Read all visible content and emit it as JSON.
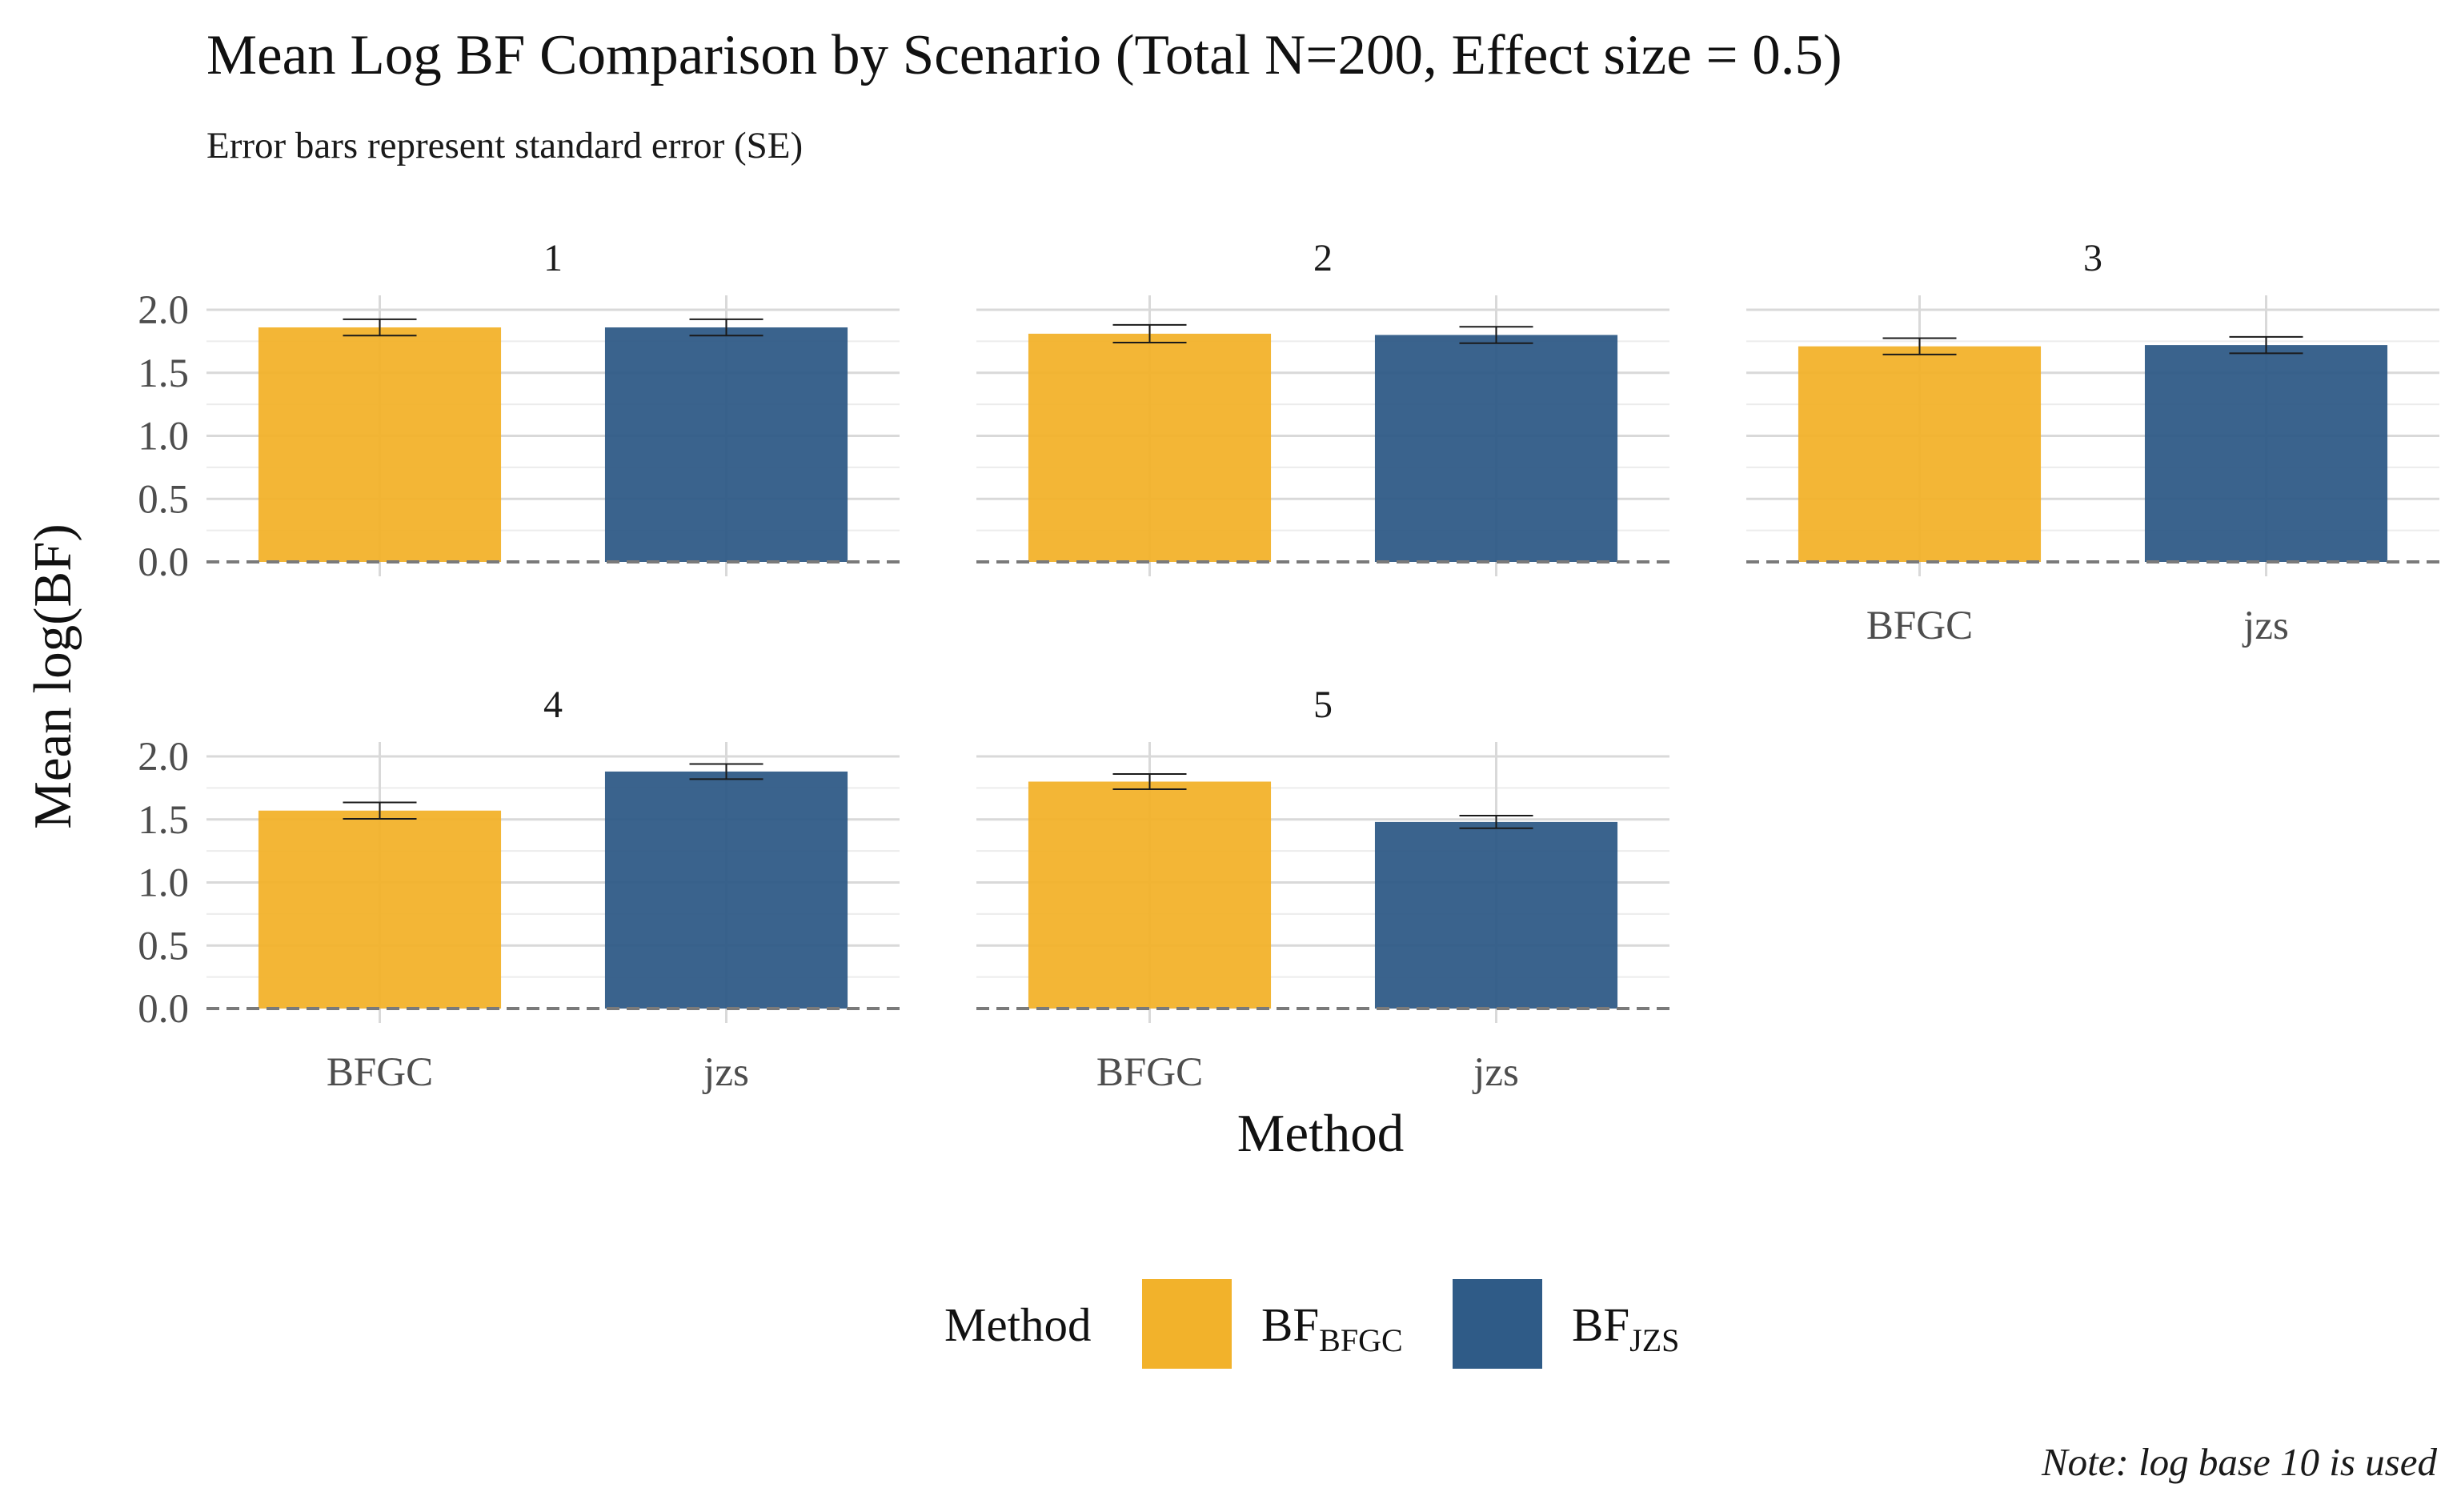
{
  "chart_data": {
    "type": "bar",
    "title": "Mean Log BF Comparison by Scenario (Total N=200, Effect size = 0.5)",
    "subtitle": "Error bars represent standard error (SE)",
    "xlabel": "Method",
    "ylabel": "Mean log(BF)",
    "ylim": [
      0,
      2.0
    ],
    "yticks": [
      "0.0",
      "0.5",
      "1.0",
      "1.5",
      "2.0"
    ],
    "grid": true,
    "reference_line": 0,
    "categories": [
      "BFGC",
      "jzs"
    ],
    "legend": {
      "title": "Method",
      "position": "bottom",
      "entries": [
        {
          "base": "BF",
          "sub": "BFGC",
          "color": "#F2B22B"
        },
        {
          "base": "BF",
          "sub": "JZS",
          "color": "#2F5B87"
        }
      ]
    },
    "facets": [
      {
        "label": "1",
        "values": [
          1.86,
          1.86
        ],
        "se": [
          0.065,
          0.065
        ]
      },
      {
        "label": "2",
        "values": [
          1.81,
          1.8
        ],
        "se": [
          0.07,
          0.065
        ]
      },
      {
        "label": "3",
        "values": [
          1.71,
          1.72
        ],
        "se": [
          0.065,
          0.065
        ]
      },
      {
        "label": "4",
        "values": [
          1.57,
          1.88
        ],
        "se": [
          0.065,
          0.06
        ]
      },
      {
        "label": "5",
        "values": [
          1.8,
          1.48
        ],
        "se": [
          0.06,
          0.05
        ]
      }
    ],
    "note": "Note: log base 10 is used"
  }
}
